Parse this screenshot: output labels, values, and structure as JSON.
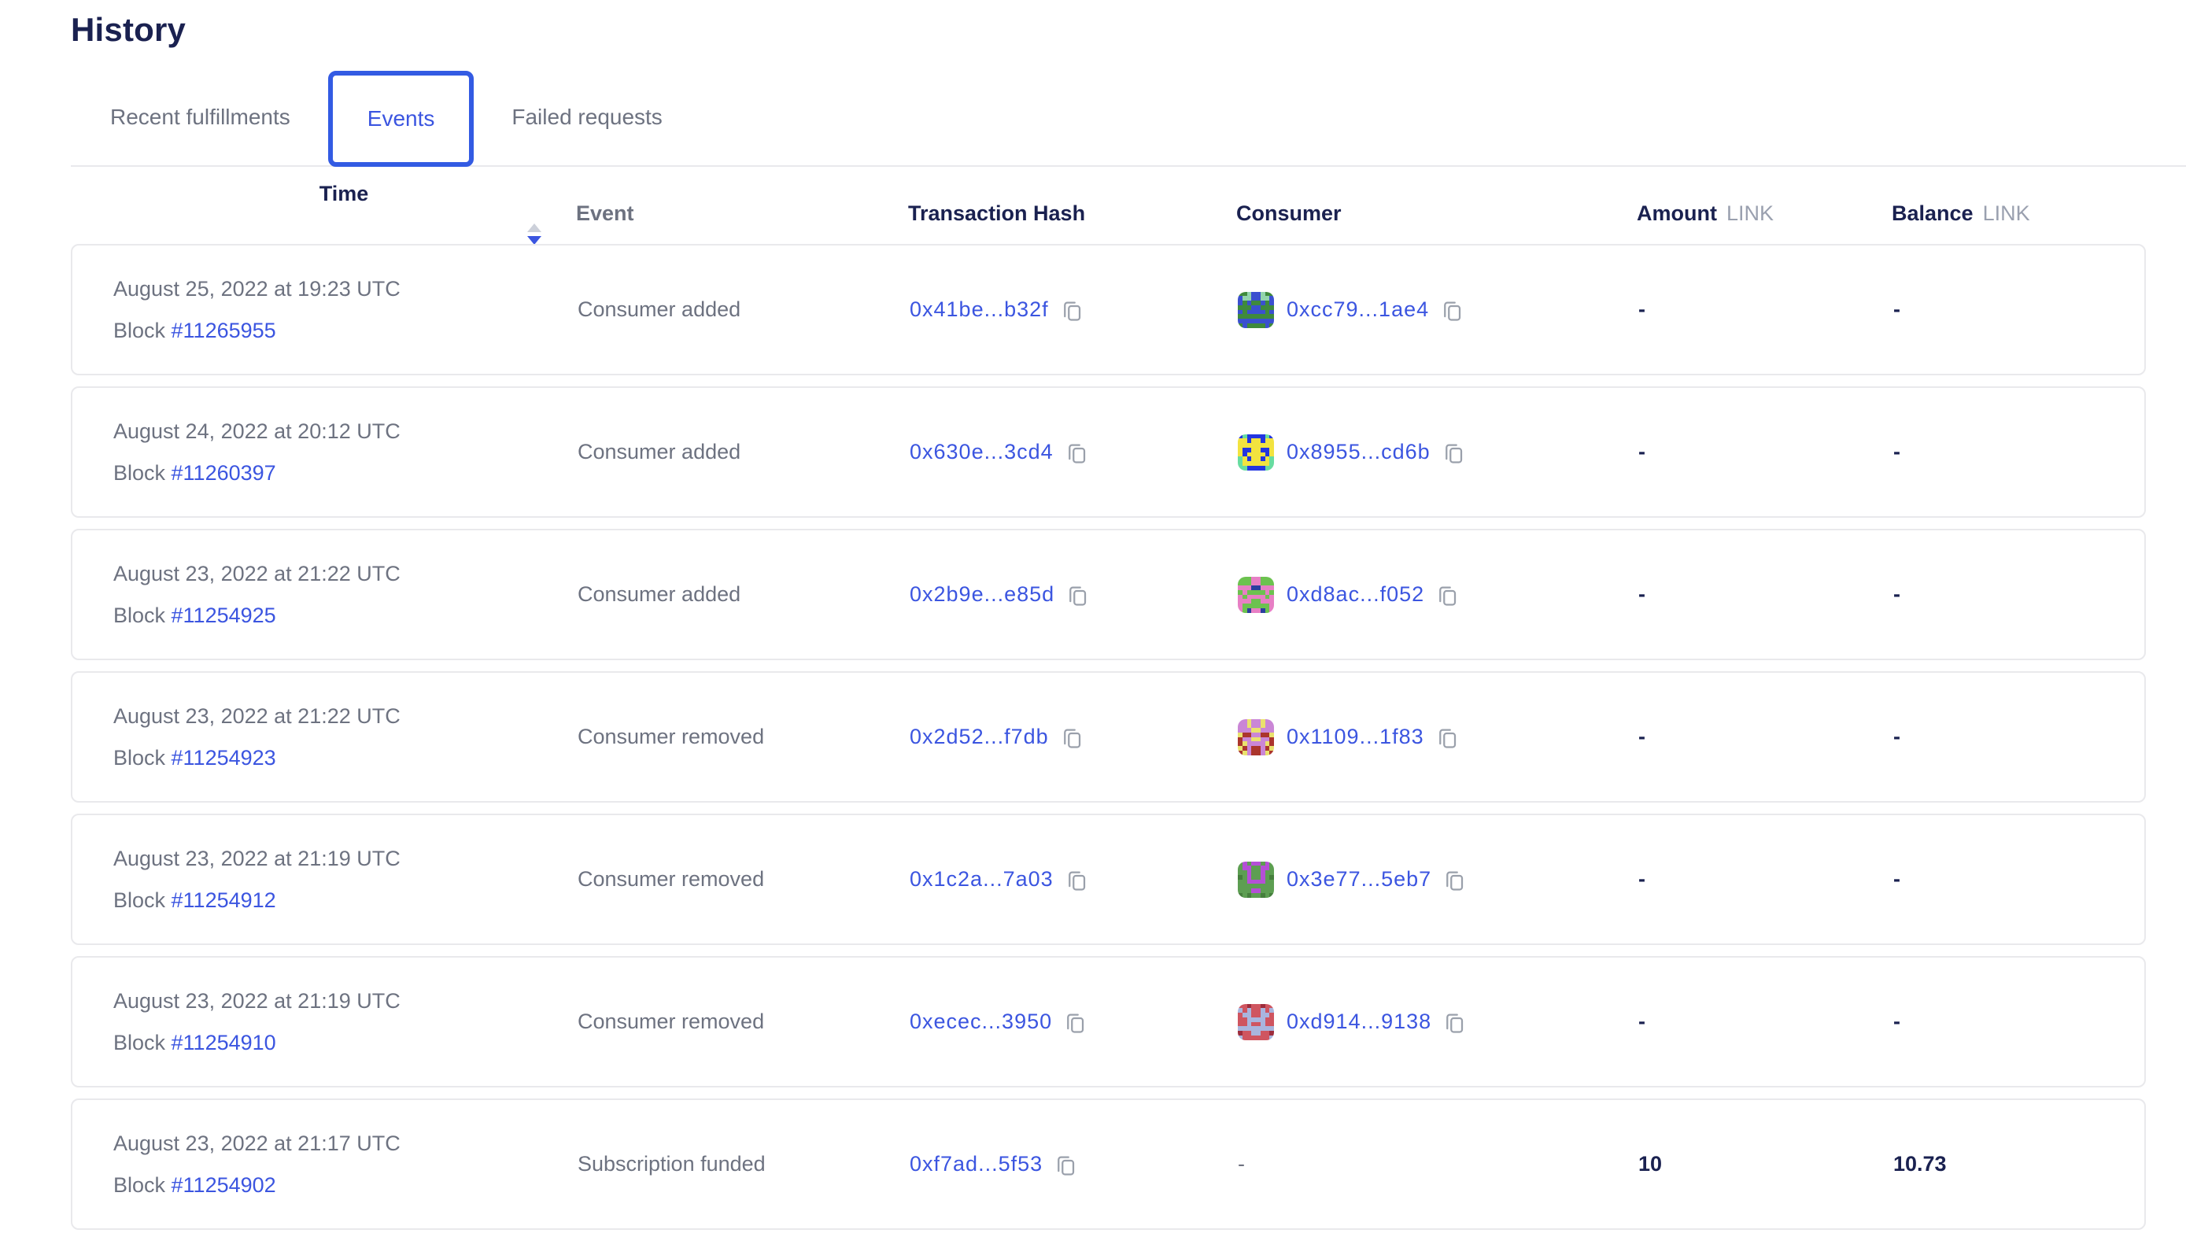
{
  "page": {
    "title": "History"
  },
  "tabs": [
    {
      "label": "Recent fulfillments",
      "active": false
    },
    {
      "label": "Events",
      "active": true
    },
    {
      "label": "Failed requests",
      "active": false
    }
  ],
  "table": {
    "headers": {
      "time": "Time",
      "event": "Event",
      "hash": "Transaction Hash",
      "consumer": "Consumer",
      "amount": "Amount",
      "balance": "Balance",
      "unit": "LINK"
    },
    "block_label": "Block",
    "rows": [
      {
        "date": "August 25, 2022 at 19:23 UTC",
        "block": "#11265955",
        "event": "Consumer added",
        "hash": "0x41be...b32f",
        "consumer": "0xcc79...1ae4",
        "amount": "-",
        "balance": "-",
        "avatar": {
          "seed": 41,
          "bg": "#3f8a3c",
          "fg": "#3a50cf",
          "spot": "#92d4ad"
        }
      },
      {
        "date": "August 24, 2022 at 20:12 UTC",
        "block": "#11260397",
        "event": "Consumer added",
        "hash": "0x630e...3cd4",
        "consumer": "0x8955...cd6b",
        "amount": "-",
        "balance": "-",
        "avatar": {
          "seed": 7,
          "bg": "#2335e0",
          "fg": "#f2e33f",
          "spot": "#67dca0"
        }
      },
      {
        "date": "August 23, 2022 at 21:22 UTC",
        "block": "#11254925",
        "event": "Consumer added",
        "hash": "0x2b9e...e85d",
        "consumer": "0xd8ac...f052",
        "amount": "-",
        "balance": "-",
        "avatar": {
          "seed": 23,
          "bg": "#6cc24f",
          "fg": "#e77fc4",
          "spot": "#2b3f9e"
        }
      },
      {
        "date": "August 23, 2022 at 21:22 UTC",
        "block": "#11254923",
        "event": "Consumer removed",
        "hash": "0x2d52...f7db",
        "consumer": "0x1109...1f83",
        "amount": "-",
        "balance": "-",
        "avatar": {
          "seed": 55,
          "bg": "#ca86d6",
          "fg": "#eae26d",
          "spot": "#ab352c"
        }
      },
      {
        "date": "August 23, 2022 at 21:19 UTC",
        "block": "#11254912",
        "event": "Consumer removed",
        "hash": "0x1c2a...7a03",
        "consumer": "0x3e77...5eb7",
        "amount": "-",
        "balance": "-",
        "avatar": {
          "seed": 12,
          "bg": "#5d9e52",
          "fg": "#b44fd6",
          "spot": "#457f3c"
        }
      },
      {
        "date": "August 23, 2022 at 21:19 UTC",
        "block": "#11254910",
        "event": "Consumer removed",
        "hash": "0xecec...3950",
        "consumer": "0xd914...9138",
        "amount": "-",
        "balance": "-",
        "avatar": {
          "seed": 33,
          "bg": "#cf5560",
          "fg": "#a9b5de",
          "spot": "#9e2d3c"
        }
      },
      {
        "date": "August 23, 2022 at 21:17 UTC",
        "block": "#11254902",
        "event": "Subscription funded",
        "hash": "0xf7ad...5f53",
        "consumer": "-",
        "amount": "10",
        "balance": "10.73",
        "avatar": null
      }
    ]
  },
  "colors": {
    "accent_blue": "#3b55e0",
    "navy": "#1a2150",
    "tab_border": "#335be3",
    "gray_text": "#6d7280",
    "card_border": "#e9e9ec"
  }
}
